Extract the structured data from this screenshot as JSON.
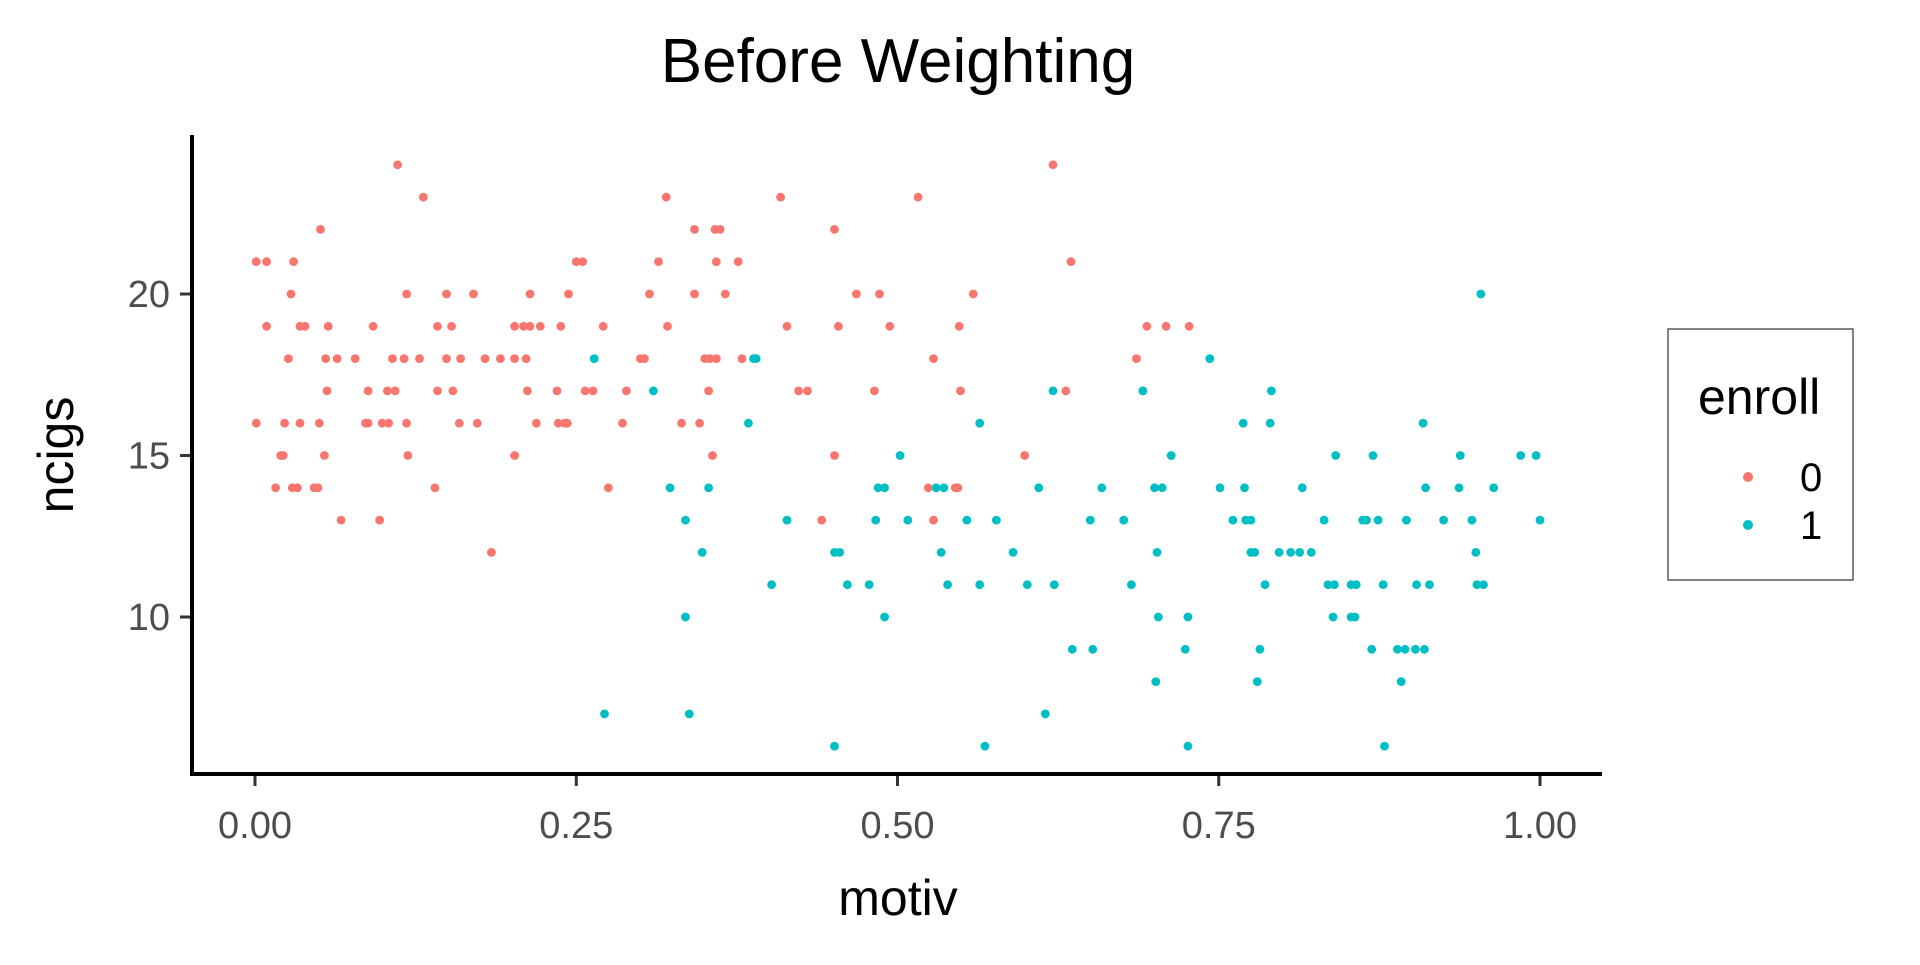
{
  "chart_data": {
    "type": "scatter",
    "title": "Before Weighting",
    "xlabel": "motiv",
    "ylabel": "ncigs",
    "xlim": [
      -0.05,
      1.05
    ],
    "ylim": [
      5.2,
      24.9
    ],
    "xticks": [
      0,
      0.25,
      0.5,
      0.75,
      1
    ],
    "xtick_labels": [
      "0.00",
      "0.25",
      "0.50",
      "0.75",
      "1.00"
    ],
    "yticks": [
      10,
      15,
      20
    ],
    "ytick_labels": [
      "10",
      "15",
      "20"
    ],
    "grid": false,
    "legend": {
      "title": "enroll",
      "placement": "right"
    },
    "series": [
      {
        "name": "0",
        "color": "#F8766D",
        "rows": [
          {
            "y": 24,
            "x": [
              0.111,
              0.621
            ]
          },
          {
            "y": 23,
            "x": [
              0.131,
              0.32,
              0.409,
              0.516
            ]
          },
          {
            "y": 22,
            "x": [
              0.051,
              0.342,
              0.358,
              0.362,
              0.451
            ]
          },
          {
            "y": 21,
            "x": [
              0.001,
              0.009,
              0.03,
              0.25,
              0.255,
              0.314,
              0.359,
              0.376,
              0.635
            ]
          },
          {
            "y": 20,
            "x": [
              0.028,
              0.118,
              0.149,
              0.17,
              0.214,
              0.244,
              0.307,
              0.342,
              0.366,
              0.468,
              0.486,
              0.559
            ]
          },
          {
            "y": 19,
            "x": [
              0.009,
              0.035,
              0.039,
              0.057,
              0.092,
              0.142,
              0.153,
              0.202,
              0.209,
              0.214,
              0.222,
              0.238,
              0.271,
              0.321,
              0.414,
              0.454,
              0.494,
              0.548,
              0.694,
              0.709,
              0.727
            ]
          },
          {
            "y": 18,
            "x": [
              0.026,
              0.055,
              0.064,
              0.078,
              0.107,
              0.116,
              0.128,
              0.149,
              0.16,
              0.179,
              0.191,
              0.202,
              0.211,
              0.3,
              0.303,
              0.35,
              0.354,
              0.359,
              0.379,
              0.528,
              0.686
            ]
          },
          {
            "y": 17,
            "x": [
              0.056,
              0.088,
              0.103,
              0.109,
              0.142,
              0.154,
              0.212,
              0.235,
              0.257,
              0.263,
              0.289,
              0.353,
              0.423,
              0.43,
              0.482,
              0.549,
              0.631,
              0.691
            ]
          },
          {
            "y": 16,
            "x": [
              0.001,
              0.023,
              0.035,
              0.05,
              0.086,
              0.088,
              0.099,
              0.104,
              0.118,
              0.159,
              0.173,
              0.219,
              0.236,
              0.241,
              0.243,
              0.286,
              0.332,
              0.346
            ]
          },
          {
            "y": 15,
            "x": [
              0.02,
              0.022,
              0.054,
              0.119,
              0.202,
              0.356,
              0.451,
              0.599
            ]
          },
          {
            "y": 14,
            "x": [
              0.016,
              0.029,
              0.033,
              0.046,
              0.049,
              0.14,
              0.275,
              0.524,
              0.545,
              0.547
            ]
          },
          {
            "y": 13,
            "x": [
              0.067,
              0.097,
              0.441,
              0.528
            ]
          },
          {
            "y": 12,
            "x": [
              0.184
            ]
          }
        ]
      },
      {
        "name": "1",
        "color": "#00BFC4",
        "rows": [
          {
            "y": 20,
            "x": [
              0.954
            ]
          },
          {
            "y": 18,
            "x": [
              0.264,
              0.388,
              0.39,
              0.743
            ]
          },
          {
            "y": 17,
            "x": [
              0.31,
              0.621,
              0.691,
              0.791
            ]
          },
          {
            "y": 16,
            "x": [
              0.384,
              0.564,
              0.769,
              0.79,
              0.909
            ]
          },
          {
            "y": 15,
            "x": [
              0.502,
              0.713,
              0.841,
              0.87,
              0.938,
              0.985,
              0.997
            ]
          },
          {
            "y": 14,
            "x": [
              0.323,
              0.353,
              0.485,
              0.49,
              0.53,
              0.536,
              0.61,
              0.659,
              0.7,
              0.706,
              0.751,
              0.77,
              0.815,
              0.911,
              0.937,
              0.964
            ]
          },
          {
            "y": 13,
            "x": [
              0.335,
              0.414,
              0.483,
              0.508,
              0.554,
              0.577,
              0.65,
              0.676,
              0.761,
              0.771,
              0.775,
              0.832,
              0.862,
              0.865,
              0.874,
              0.896,
              0.925,
              0.947,
              1.0
            ]
          },
          {
            "y": 12,
            "x": [
              0.348,
              0.451,
              0.455,
              0.534,
              0.59,
              0.702,
              0.775,
              0.778,
              0.797,
              0.806,
              0.813,
              0.822,
              0.95
            ]
          },
          {
            "y": 11,
            "x": [
              0.402,
              0.461,
              0.478,
              0.539,
              0.564,
              0.601,
              0.622,
              0.682,
              0.786,
              0.835,
              0.84,
              0.853,
              0.857,
              0.878,
              0.904,
              0.914,
              0.951,
              0.956
            ]
          },
          {
            "y": 10,
            "x": [
              0.335,
              0.49,
              0.703,
              0.726,
              0.839,
              0.853,
              0.856
            ]
          },
          {
            "y": 9,
            "x": [
              0.636,
              0.652,
              0.724,
              0.782,
              0.869,
              0.889,
              0.895,
              0.903,
              0.91
            ]
          },
          {
            "y": 8,
            "x": [
              0.701,
              0.78,
              0.892
            ]
          },
          {
            "y": 7,
            "x": [
              0.272,
              0.338,
              0.615
            ]
          },
          {
            "y": 6,
            "x": [
              0.451,
              0.568,
              0.726,
              0.879
            ]
          }
        ]
      }
    ]
  }
}
